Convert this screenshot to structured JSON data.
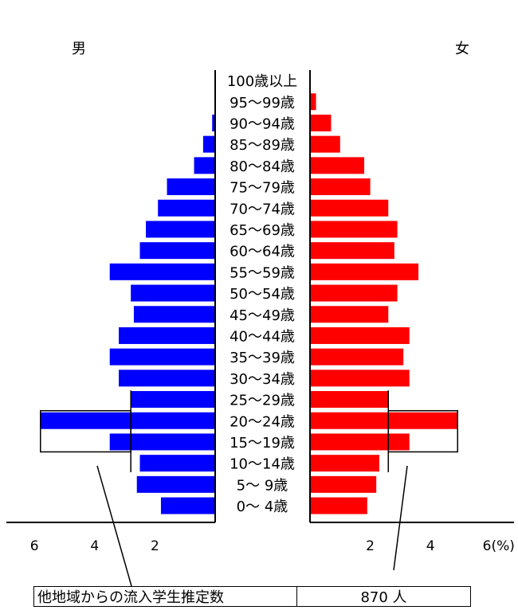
{
  "labels": {
    "male": "男",
    "female": "女"
  },
  "chart_data": {
    "type": "bar",
    "subtype": "population-pyramid",
    "categories": [
      "0～ 4歳",
      "5～ 9歳",
      "10～14歳",
      "15～19歳",
      "20～24歳",
      "25～29歳",
      "30～34歳",
      "35～39歳",
      "40～44歳",
      "45～49歳",
      "50～54歳",
      "55～59歳",
      "60～64歳",
      "65～69歳",
      "70～74歳",
      "75～79歳",
      "80～84歳",
      "85～89歳",
      "90～94歳",
      "95～99歳",
      "100歳以上"
    ],
    "series": [
      {
        "name": "男",
        "color": "#0000ff",
        "values": [
          1.8,
          2.6,
          2.5,
          3.5,
          5.8,
          2.8,
          3.2,
          3.5,
          3.2,
          2.7,
          2.8,
          3.5,
          2.5,
          2.3,
          1.9,
          1.6,
          0.7,
          0.4,
          0.1,
          0.0,
          0.0
        ]
      },
      {
        "name": "女",
        "color": "#ff0000",
        "values": [
          1.9,
          2.2,
          2.3,
          3.3,
          4.9,
          2.6,
          3.3,
          3.1,
          3.3,
          2.6,
          2.9,
          3.6,
          2.8,
          2.9,
          2.6,
          2.0,
          1.8,
          1.0,
          0.7,
          0.2,
          0.0
        ]
      }
    ],
    "overlay": {
      "name": "他地域からの流入学生推定数",
      "age_groups": [
        "15～19歳",
        "20～24歳"
      ],
      "outline_values": [
        2.8,
        2.6
      ],
      "baseline_value": 2.8
    },
    "xticks": [
      "6",
      "4",
      "2",
      "2",
      "4",
      "6(%)"
    ],
    "xtick_values": [
      6,
      4,
      2,
      2,
      4,
      6
    ],
    "xlim": [
      0,
      6
    ],
    "grid": false
  },
  "info": {
    "label": "他地域からの流入学生推定数",
    "value": "870 人"
  }
}
